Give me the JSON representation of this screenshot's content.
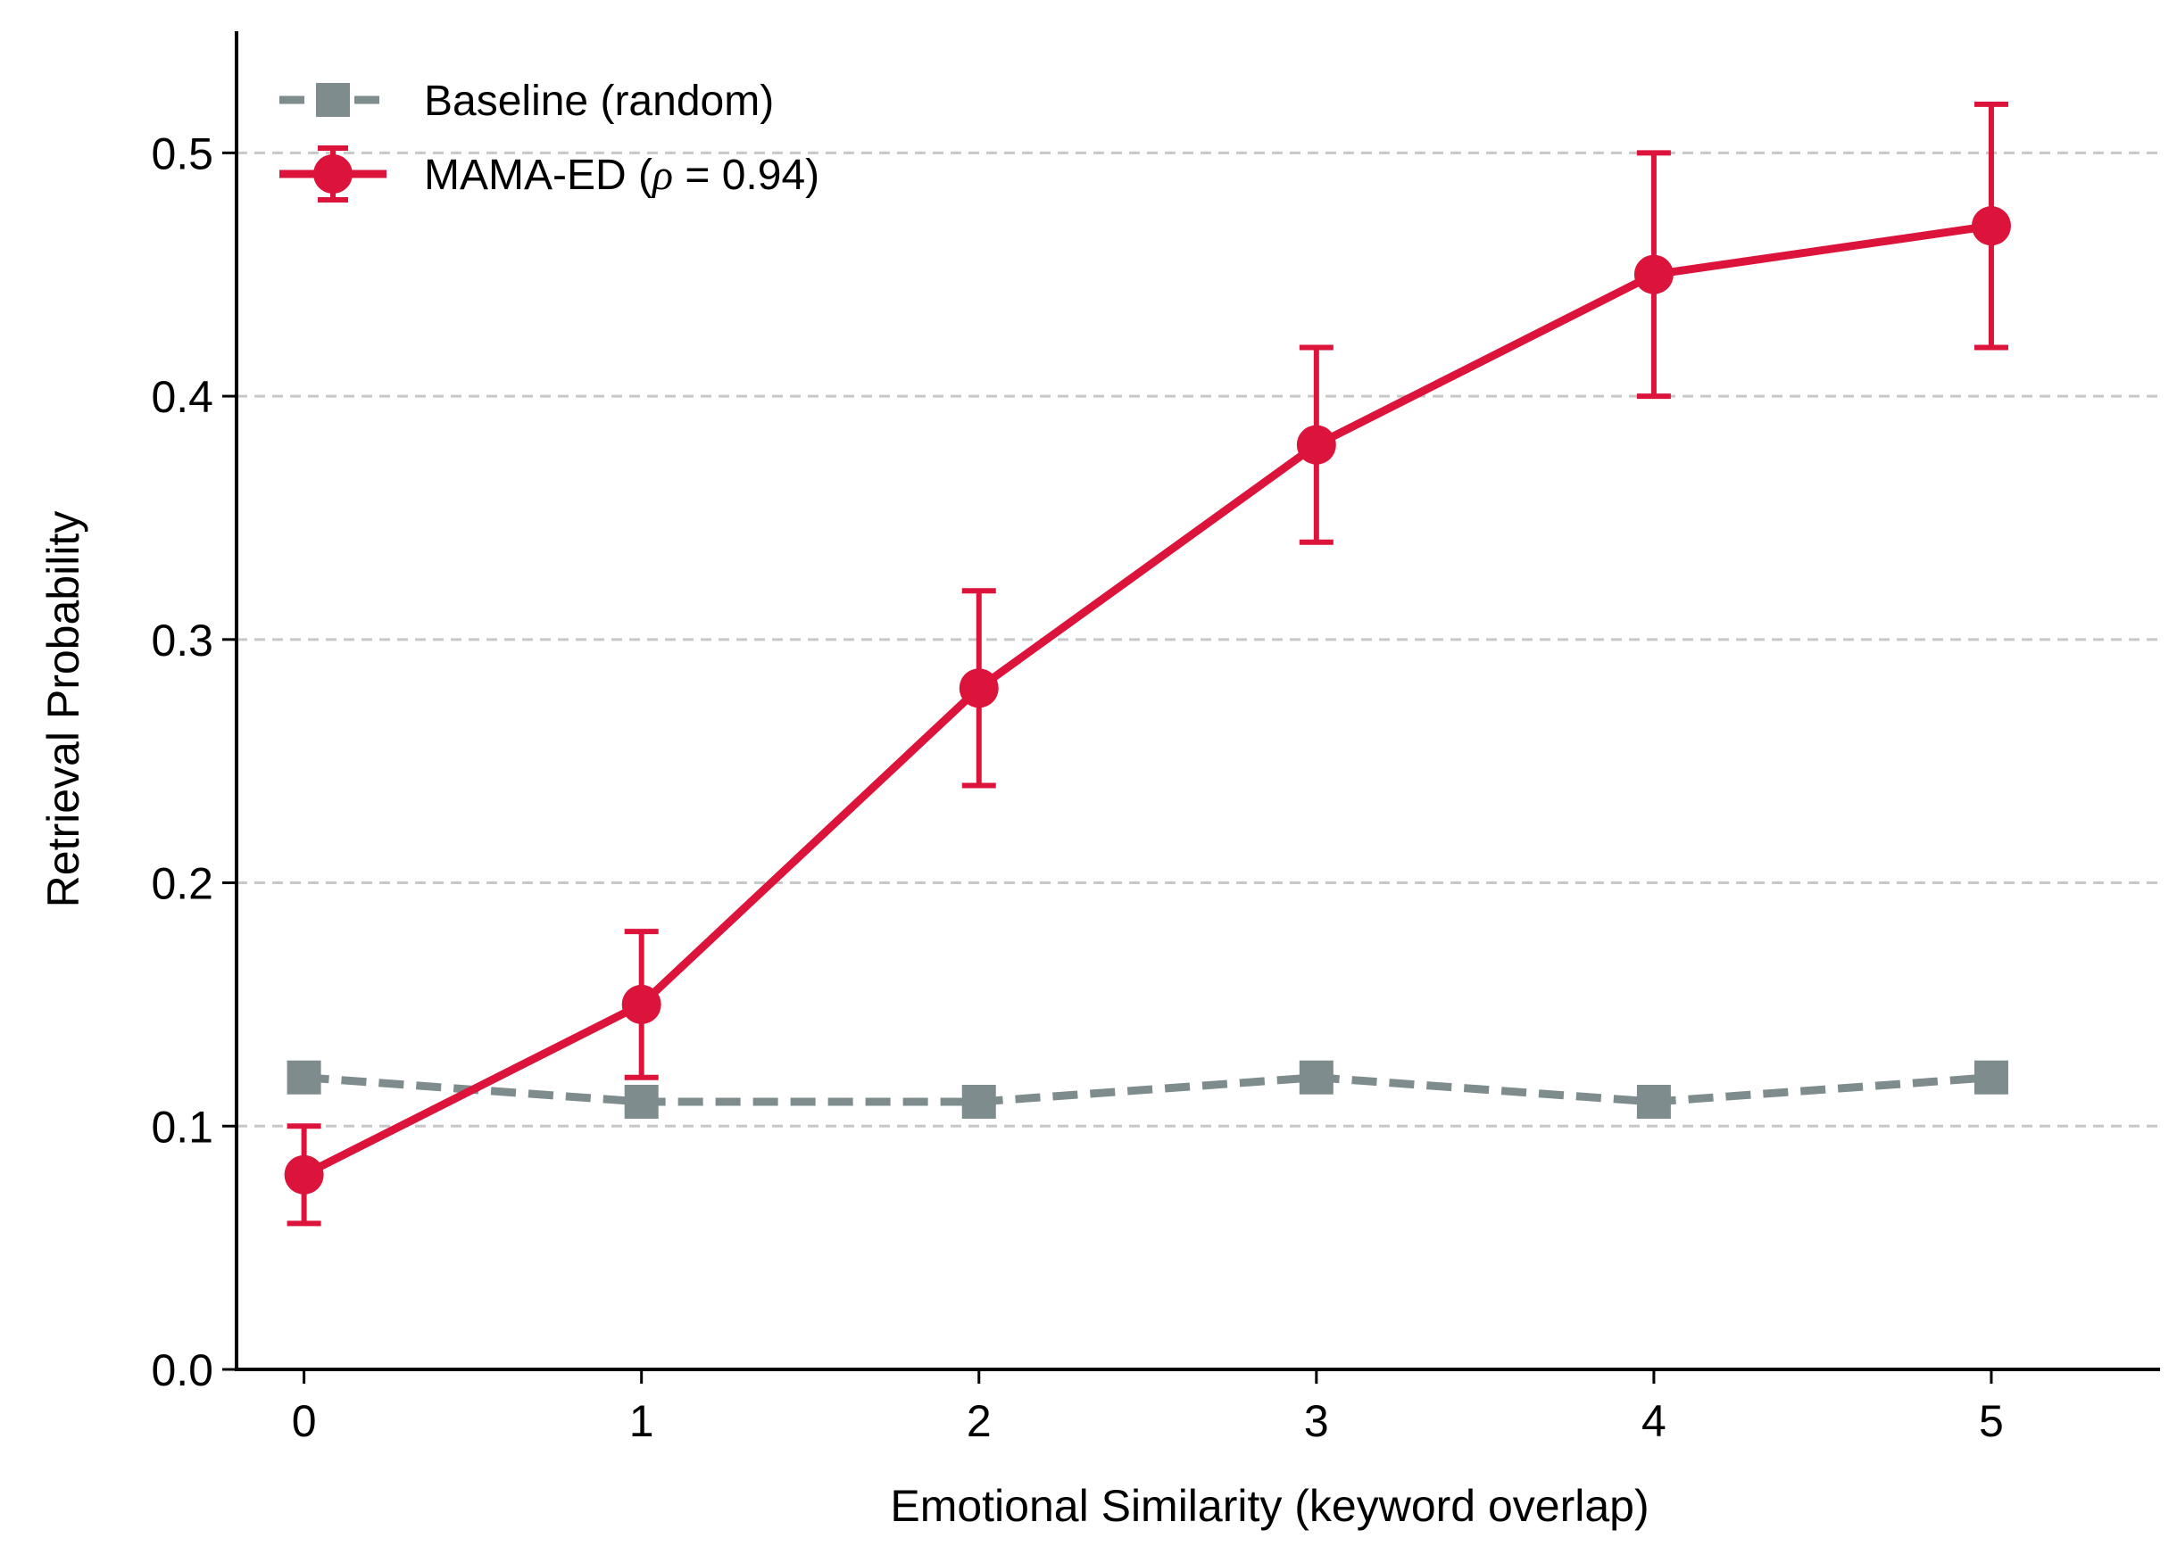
{
  "chart_data": {
    "type": "line",
    "xlabel": "Emotional Similarity (keyword overlap)",
    "ylabel": "Retrieval Probability",
    "x": [
      0,
      1,
      2,
      3,
      4,
      5
    ],
    "x_ticks": [
      "0",
      "1",
      "2",
      "3",
      "4",
      "5"
    ],
    "y_ticks": [
      "0.0",
      "0.1",
      "0.2",
      "0.3",
      "0.4",
      "0.5"
    ],
    "xlim": [
      -0.2,
      5.5
    ],
    "ylim": [
      0.0,
      0.55
    ],
    "grid": "horizontal dashed",
    "legend_position": "top-left",
    "series": [
      {
        "name": "Baseline (random)",
        "values": [
          0.12,
          0.11,
          0.11,
          0.12,
          0.11,
          0.12
        ],
        "color": "#7f8c8d",
        "line_style": "dashed",
        "marker": "square"
      },
      {
        "name_prefix": "MAMA-ED (",
        "name_symbol": "ρ",
        "name_suffix": " = 0.94)",
        "values": [
          0.08,
          0.15,
          0.28,
          0.38,
          0.45,
          0.47
        ],
        "errors": [
          0.02,
          0.03,
          0.04,
          0.04,
          0.05,
          0.05
        ],
        "color": "#dc143c",
        "line_style": "solid",
        "marker": "circle"
      }
    ]
  }
}
